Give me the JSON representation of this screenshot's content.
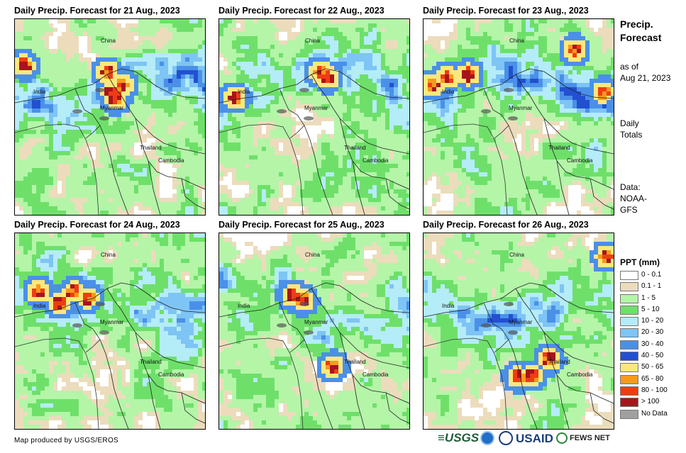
{
  "panels": [
    {
      "title": "Daily Precip. Forecast for 21 Aug., 2023"
    },
    {
      "title": "Daily Precip. Forecast for 22 Aug., 2023"
    },
    {
      "title": "Daily Precip. Forecast for 23 Aug., 2023"
    },
    {
      "title": "Daily Precip. Forecast for 24 Aug., 2023"
    },
    {
      "title": "Daily Precip. Forecast for 25 Aug., 2023"
    },
    {
      "title": "Daily Precip. Forecast for 26 Aug., 2023"
    }
  ],
  "places": {
    "china": "China",
    "india": "India",
    "myanmar": "Myanmar",
    "thailand": "Thailand",
    "cambodia": "Cambodia"
  },
  "sidebar": {
    "title_line1": "Precip.",
    "title_line2": "Forecast",
    "asof_line1": "as of",
    "asof_line2": "Aug 21, 2023",
    "daily_line1": "Daily",
    "daily_line2": "Totals",
    "data_line1": "Data:",
    "data_line2": "NOAA-",
    "data_line3": "GFS"
  },
  "legend": {
    "title": "PPT (mm)",
    "items": [
      {
        "label": "0 - 0.1",
        "color": "#ffffff"
      },
      {
        "label": "0.1 - 1",
        "color": "#ecdcbc"
      },
      {
        "label": "1 - 5",
        "color": "#b4f5a8"
      },
      {
        "label": "5 - 10",
        "color": "#6ee06a"
      },
      {
        "label": "10 - 20",
        "color": "#b4ecf8"
      },
      {
        "label": "20 - 30",
        "color": "#7ec4f4"
      },
      {
        "label": "30 - 40",
        "color": "#4a90e8"
      },
      {
        "label": "40 - 50",
        "color": "#2250d0"
      },
      {
        "label": "50 - 65",
        "color": "#fbe87c"
      },
      {
        "label": "65 - 80",
        "color": "#f79a1c"
      },
      {
        "label": "80 - 100",
        "color": "#f03c14"
      },
      {
        "label": "> 100",
        "color": "#a8141c"
      },
      {
        "label": "No Data",
        "color": "#a0a0a0"
      }
    ]
  },
  "credit": "Map produced by USGS/EROS",
  "logos": {
    "usgs": "≡USGS",
    "usaid": "USAID",
    "fewsnet": "FEWS NET"
  }
}
